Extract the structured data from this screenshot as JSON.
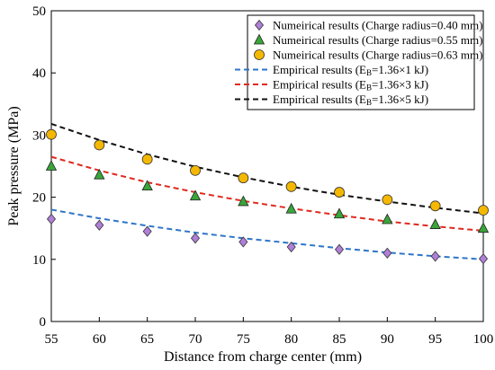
{
  "chart_data": {
    "type": "scatter",
    "xlabel": "Distance from charge center (mm)",
    "ylabel": "Peak pressure (MPa)",
    "xlim": [
      55,
      100
    ],
    "ylim": [
      0,
      50
    ],
    "xticks": [
      55,
      60,
      65,
      70,
      75,
      80,
      85,
      90,
      95,
      100
    ],
    "yticks": [
      0,
      10,
      20,
      30,
      40,
      50
    ],
    "grid": false,
    "legend_position": "top-right",
    "x": [
      55,
      60,
      65,
      70,
      75,
      80,
      85,
      90,
      95,
      100
    ],
    "series": [
      {
        "name": "Numeirical results (Charge radius=0.40 mm)",
        "kind": "markers",
        "marker": "diamond",
        "color": "#b07fd8",
        "values": [
          16.5,
          15.5,
          14.5,
          13.4,
          12.8,
          12.0,
          11.6,
          11.0,
          10.5,
          10.1
        ]
      },
      {
        "name": "Numeirical results (Charge radius=0.55 mm)",
        "kind": "markers",
        "marker": "triangle",
        "color": "#3aa53a",
        "values": [
          25.0,
          23.6,
          21.8,
          20.2,
          19.3,
          18.1,
          17.3,
          16.4,
          15.6,
          15.0
        ]
      },
      {
        "name": "Numeirical results (Charge radius=0.63 mm)",
        "kind": "markers",
        "marker": "circle",
        "color": "#f5b800",
        "values": [
          30.1,
          28.4,
          26.1,
          24.3,
          23.1,
          21.7,
          20.8,
          19.6,
          18.6,
          17.9
        ]
      },
      {
        "name_prefix": "Empirical results (E",
        "name_sub": "B",
        "name_suffix": "=1.36×1 kJ)",
        "kind": "dashed-line",
        "color": "#2e75c9",
        "values": [
          18.0,
          16.6,
          15.4,
          14.3,
          13.4,
          12.6,
          11.8,
          11.1,
          10.5,
          10.0
        ]
      },
      {
        "name_prefix": "Empirical results (E",
        "name_sub": "B",
        "name_suffix": "=1.36×3 kJ)",
        "kind": "dashed-line",
        "color": "#e02a1f",
        "values": [
          26.5,
          24.3,
          22.4,
          20.8,
          19.4,
          18.2,
          17.1,
          16.1,
          15.3,
          14.6
        ]
      },
      {
        "name_prefix": "Empirical results (E",
        "name_sub": "B",
        "name_suffix": "=1.36×5 kJ)",
        "kind": "dashed-line",
        "color": "#111111",
        "values": [
          31.8,
          29.2,
          26.9,
          24.9,
          23.2,
          21.7,
          20.4,
          19.3,
          18.3,
          17.4
        ]
      }
    ]
  }
}
